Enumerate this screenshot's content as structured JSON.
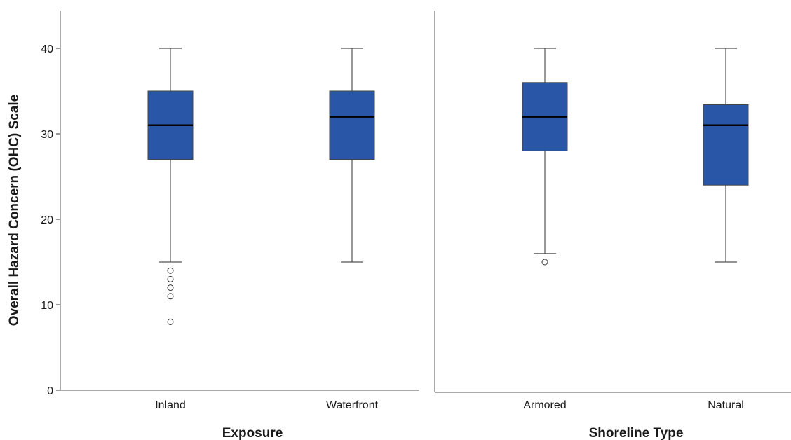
{
  "chart_data": {
    "type": "boxplot",
    "ylabel": "Overall Hazard Concern (OHC) Scale",
    "ylim": [
      0,
      45
    ],
    "yticks": [
      0,
      10,
      20,
      30,
      40
    ],
    "box_color": "#2a56a8",
    "panels": [
      {
        "xlabel": "Exposure",
        "groups": [
          {
            "category": "Inland",
            "whisker_low": 15,
            "q1": 27,
            "median": 31,
            "q3": 35,
            "whisker_high": 40,
            "outliers": [
              14,
              13,
              12,
              11,
              8
            ]
          },
          {
            "category": "Waterfront",
            "whisker_low": 15,
            "q1": 27,
            "median": 32,
            "q3": 35,
            "whisker_high": 40,
            "outliers": []
          }
        ]
      },
      {
        "xlabel": "Shoreline Type",
        "groups": [
          {
            "category": "Armored",
            "whisker_low": 16,
            "q1": 28,
            "median": 32,
            "q3": 36,
            "whisker_high": 40,
            "outliers": [
              15
            ]
          },
          {
            "category": "Natural",
            "whisker_low": 15,
            "q1": 24,
            "median": 31,
            "q3": 33.4,
            "whisker_high": 40,
            "outliers": []
          }
        ]
      }
    ]
  }
}
